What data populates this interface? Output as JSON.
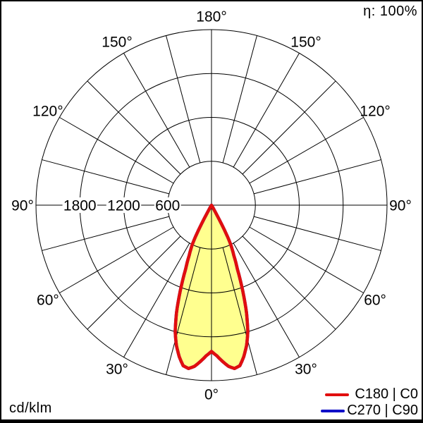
{
  "chart_data": {
    "type": "polar",
    "subtype": "luminous-intensity-distribution",
    "efficiency": "η: 100%",
    "unit": "cd/klm",
    "scale": {
      "units_per_division": 600,
      "divisions": 4,
      "max_value": 2400,
      "radial_ticks": [
        {
          "value": 1800,
          "label": "1800"
        },
        {
          "value": 1200,
          "label": "1200"
        },
        {
          "value": 600,
          "label": "600"
        }
      ]
    },
    "grid": {
      "spoke_step_deg": 15,
      "circles": 4
    },
    "angle_labels": [
      {
        "text": "180°",
        "deg": 180
      },
      {
        "text": "150°",
        "deg": -150
      },
      {
        "text": "150°",
        "deg": 150
      },
      {
        "text": "120°",
        "deg": -120
      },
      {
        "text": "120°",
        "deg": 120
      },
      {
        "text": "90°",
        "deg": -90
      },
      {
        "text": "90°",
        "deg": 90
      },
      {
        "text": "60°",
        "deg": -60
      },
      {
        "text": "60°",
        "deg": 60
      },
      {
        "text": "30°",
        "deg": -30
      },
      {
        "text": "30°",
        "deg": 30
      },
      {
        "text": "0°",
        "deg": 0
      }
    ],
    "series": [
      {
        "name": "C180 | C0",
        "color": "#e10e0e",
        "fill_color": "#ffff8f",
        "gamma_deg": [
          0,
          2,
          4,
          6,
          8,
          10,
          12,
          14,
          16,
          18,
          20,
          22,
          24,
          26,
          27,
          28,
          29,
          30,
          31
        ],
        "values_cd_per_klm": [
          2000,
          2060,
          2140,
          2215,
          2255,
          2230,
          2120,
          1980,
          1800,
          1550,
          1250,
          950,
          750,
          600,
          480,
          300,
          130,
          40,
          0
        ]
      },
      {
        "name": "C270 | C90",
        "color": "#1010c8",
        "fill_color": "none",
        "gamma_deg": [
          0,
          2,
          4,
          6,
          8,
          10,
          12,
          14,
          16,
          18,
          20,
          22,
          24,
          26,
          27,
          28,
          29,
          30,
          31
        ],
        "values_cd_per_klm": [
          2000,
          2060,
          2140,
          2215,
          2255,
          2230,
          2120,
          1980,
          1800,
          1550,
          1250,
          950,
          750,
          600,
          480,
          300,
          130,
          40,
          0
        ]
      }
    ],
    "legend": [
      {
        "label": "C180 | C0",
        "color": "#e10e0e"
      },
      {
        "label": "C270 | C90",
        "color": "#1010c8"
      }
    ]
  }
}
